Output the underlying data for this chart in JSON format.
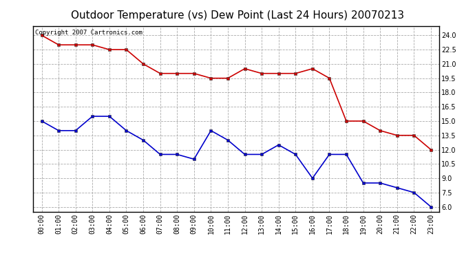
{
  "title": "Outdoor Temperature (vs) Dew Point (Last 24 Hours) 20070213",
  "copyright_text": "Copyright 2007 Cartronics.com",
  "x_labels": [
    "00:00",
    "01:00",
    "02:00",
    "03:00",
    "04:00",
    "05:00",
    "06:00",
    "07:00",
    "08:00",
    "09:00",
    "10:00",
    "11:00",
    "12:00",
    "13:00",
    "14:00",
    "15:00",
    "16:00",
    "17:00",
    "18:00",
    "19:00",
    "20:00",
    "21:00",
    "22:00",
    "23:00"
  ],
  "temp_data": [
    24.0,
    23.0,
    23.0,
    23.0,
    22.5,
    22.5,
    21.0,
    20.0,
    20.0,
    20.0,
    19.5,
    19.5,
    20.5,
    20.0,
    20.0,
    20.0,
    20.5,
    19.5,
    15.0,
    15.0,
    14.0,
    13.5,
    13.5,
    12.0
  ],
  "dew_data": [
    15.0,
    14.0,
    14.0,
    15.5,
    15.5,
    14.0,
    13.0,
    11.5,
    11.5,
    11.0,
    14.0,
    13.0,
    11.5,
    11.5,
    12.5,
    11.5,
    9.0,
    11.5,
    11.5,
    8.5,
    8.5,
    8.0,
    7.5,
    6.0
  ],
  "temp_color": "#cc0000",
  "dew_color": "#0000cc",
  "ylim": [
    5.5,
    25.0
  ],
  "yticks": [
    6.0,
    7.5,
    9.0,
    10.5,
    12.0,
    13.5,
    15.0,
    16.5,
    18.0,
    19.5,
    21.0,
    22.5,
    24.0
  ],
  "background_color": "#ffffff",
  "grid_color": "#aaaaaa",
  "title_fontsize": 11,
  "tick_fontsize": 7,
  "copyright_fontsize": 6.5
}
